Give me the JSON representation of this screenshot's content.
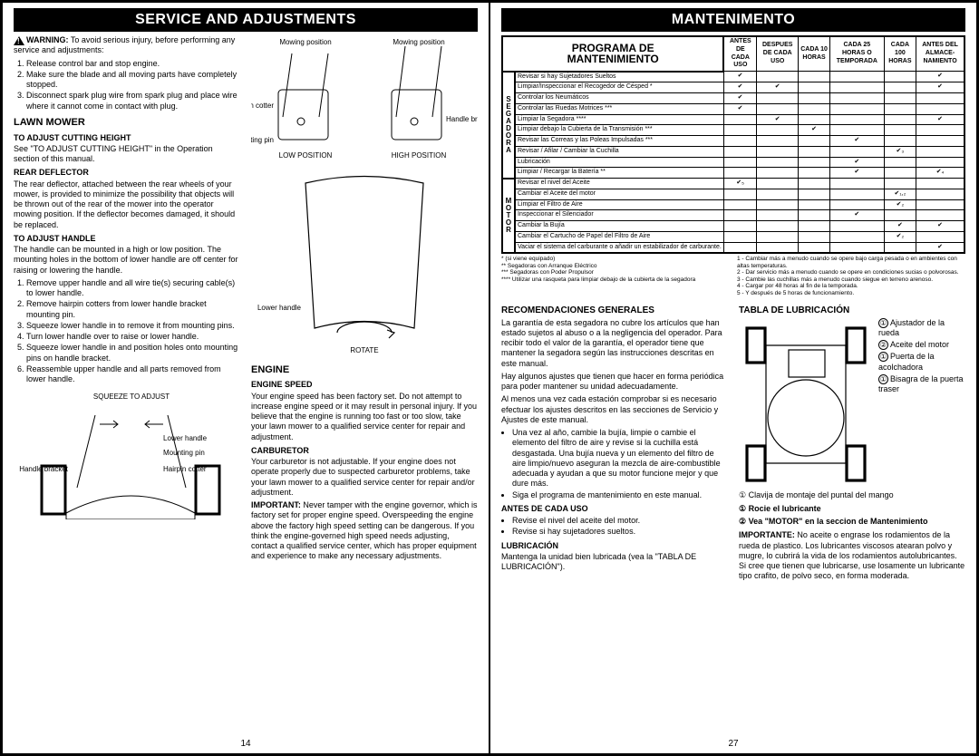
{
  "left": {
    "header": "SERVICE AND ADJUSTMENTS",
    "warning_label": "WARNING:",
    "warning_text": "To avoid serious injury, before performing any service and adjustments:",
    "warning_items": [
      "Release control bar and stop engine.",
      "Make sure the blade and all moving parts have completely stopped.",
      "Disconnect spark plug wire from spark plug and place wire where it cannot come in contact with plug."
    ],
    "lawn_mower_h": "LAWN MOWER",
    "cut_height_h": "TO ADJUST CUTTING HEIGHT",
    "cut_height_p": "See \"TO ADJUST CUTTING HEIGHT\" in the Operation section of this manual.",
    "rear_def_h": "REAR DEFLECTOR",
    "rear_def_p": "The rear deflector, attached between the rear wheels of your mower, is provided to minimize the possibility that objects will be thrown out of the rear of the mower into the operator mowing position.  If the deflector becomes damaged, it should be replaced.",
    "adj_handle_h": "TO ADJUST HANDLE",
    "adj_handle_p": "The handle can be mounted in a high or low position.  The mounting holes in the bottom of lower handle are off center for raising or lowering the handle.",
    "adj_handle_items": [
      "Remove upper handle and all wire tie(s) securing cable(s) to lower handle.",
      "Remove hairpin cotters from lower handle bracket mounting pin.",
      "Squeeze lower handle in to remove it from mounting pins.",
      "Turn lower handle over to raise or lower handle.",
      "Squeeze lower handle in and position holes onto mounting pins on handle bracket.",
      "Reassemble upper handle and all parts removed from lower handle."
    ],
    "fig1_labels": {
      "mowpos": "Mowing position",
      "hairpin": "Hairpin cotter",
      "mountpin": "Mounting pin",
      "handlebr": "Handle bracket",
      "low": "LOW POSITION",
      "high": "HIGH POSITION"
    },
    "fig2_labels": {
      "lower": "Lower handle",
      "rotate": "ROTATE"
    },
    "fig3_labels": {
      "squeeze": "SQUEEZE TO ADJUST",
      "lower": "Lower handle",
      "mountpin": "Mounting pin",
      "handlebr": "Handle bracket",
      "hairpin": "Hairpin cotter"
    },
    "engine_h": "ENGINE",
    "engine_speed_h": "ENGINE SPEED",
    "engine_speed_p": "Your engine speed has been factory set. Do not attempt to increase engine speed or it may result in personal injury. If you believe that the engine is running too fast or too slow, take your lawn mower to a qualified service center for repair and adjustment.",
    "carb_h": "CARBURETOR",
    "carb_p": "Your carburetor is not adjustable.  If your engine does not operate properly due to suspected carburetor problems, take your lawn mower to a qualified service center for repair and/or adjustment.",
    "important_label": "IMPORTANT:",
    "important_p": "Never tamper with the engine governor, which is factory set for proper engine speed.  Overspeeding the engine above the factory high speed setting can be dangerous.  If you think the engine-governed high speed needs adjusting, contact a qualified service center, which has proper equipment and experience to make any necessary adjustments.",
    "page_num": "14"
  },
  "right": {
    "header": "MANTENIMENTO",
    "table_title1": "PROGRAMA DE",
    "table_title2": "MANTENIMIENTO",
    "col_headers": [
      "ANTES DE CADA USO",
      "DESPUES DE CADA USO",
      "CADA 10 HORAS",
      "CADA 25 HORAS O TEMPORADA",
      "CADA 100 HORAS",
      "ANTES DEL ALMACE-NAMIENTO"
    ],
    "side_labels": [
      "S",
      "E",
      "G",
      "A",
      "D",
      "O",
      "R",
      "A",
      "",
      "M",
      "O",
      "T",
      "O",
      "R"
    ],
    "rows": [
      {
        "l": "Revisar si hay Sujetadores Sueltos",
        "c": [
          1,
          0,
          0,
          0,
          0,
          1
        ]
      },
      {
        "l": "Limpiar/Inspeccionar el Recogedor de Césped *",
        "c": [
          1,
          1,
          0,
          0,
          0,
          1
        ]
      },
      {
        "l": "Controlar los Neumáticos",
        "c": [
          1,
          0,
          0,
          0,
          0,
          0
        ]
      },
      {
        "l": "Controlar las Ruedas Motrices ***",
        "c": [
          1,
          0,
          0,
          0,
          0,
          0
        ]
      },
      {
        "l": "Limpiar la Segadora ****",
        "c": [
          0,
          1,
          0,
          0,
          0,
          1
        ]
      },
      {
        "l": "Limpiar debajo la Cubierta de la Transmisión ***",
        "c": [
          0,
          0,
          1,
          0,
          0,
          0
        ]
      },
      {
        "l": "Revisar las Correas y las Poleas Impulsadas ***",
        "c": [
          0,
          0,
          0,
          1,
          0,
          0
        ]
      },
      {
        "l": "Revisar / Afilar / Cambiar la Cuchilla",
        "c": [
          0,
          0,
          0,
          0,
          "✔₃",
          0
        ]
      },
      {
        "l": "Lubricación",
        "c": [
          0,
          0,
          0,
          1,
          0,
          0
        ]
      },
      {
        "l": "Limpiar / Recargar la Batería **",
        "c": [
          0,
          0,
          0,
          1,
          0,
          "✔₄"
        ]
      },
      {
        "l": "Revisar el nivel del Aceite",
        "c": [
          "✔₅",
          0,
          0,
          0,
          0,
          0
        ]
      },
      {
        "l": "Cambiar el Aceite del motor",
        "c": [
          0,
          0,
          0,
          0,
          "✔₁,₂",
          0
        ]
      },
      {
        "l": "Limpiar el Filtro de Aire",
        "c": [
          0,
          0,
          0,
          0,
          "✔₂",
          0
        ]
      },
      {
        "l": "Inspeccionar el Silenciador",
        "c": [
          0,
          0,
          0,
          1,
          0,
          0
        ]
      },
      {
        "l": "Cambiar la Bujía",
        "c": [
          0,
          0,
          0,
          0,
          1,
          1
        ]
      },
      {
        "l": "Cambiar el Cartucho de Papel del Filtro de Aire",
        "c": [
          0,
          0,
          0,
          0,
          "✔₂",
          0
        ]
      },
      {
        "l": "Vaciar el sistema del carburante o añadir un estabilizador de carburante.",
        "c": [
          0,
          0,
          0,
          0,
          0,
          1
        ]
      }
    ],
    "footnotes_left": [
      "* (si viene equipado)",
      "** Segadoras con Arranque Eléctrico",
      "*** Segadoras con Poder Propulsor",
      "**** Utilizar una rasqueta para limpiar debajo de la cubierta de la segadora"
    ],
    "footnotes_right": [
      "1 - Cambiar más a menudo cuando se opere bajo carga pesada o en ambientes con altas temperaturas.",
      "2 - Dar servicio más a menudo cuando se opere en condiciones sucias o polvorosas.",
      "3 - Cambie las cuchillas más a menudo cuando siegue en terreno arenoso.",
      "4 - Cargar por 48 horas al fin de la temporada.",
      "5 - Y después de 5 horas de funcionamiento."
    ],
    "recom_h": "RECOMENDACIONES GENERALES",
    "recom_p1": "La garantía de esta segadora no cubre los artículos que han estado sujetos al abuso o a la negligencia del operador. Para recibir todo el valor de la garantía, el operador tiene que mantener la segadora según las instrucciones descritas en este manual.",
    "recom_p2": "Hay algunos ajustes que tienen que hacer en forma periódica para poder mantener su unidad adecuadamente.",
    "recom_p3": "Al menos una vez cada estación comprobar si es necesario efectuar los ajustes descritos en las secciones de Servicio y Ajustes de este manual.",
    "recom_bullets": [
      "Una vez al año, cambie la bujía, limpie o cambie el elemento del filtro de aire y revise si la cuchilla está desgastada. Una bujía nueva y un elemento del filtro de aire limpio/nuevo aseguran la mezcla de aire-combustible adecuada y ayudan a que su motor funcione mejor y que dure más.",
      "Siga el programa de mantenimiento en este manual."
    ],
    "antes_h": "ANTES DE CADA USO",
    "antes_bullets": [
      "Revise el nivel del aceite del motor.",
      "Revise si hay sujetadores sueltos."
    ],
    "lubr_h": "LUBRICACIÓN",
    "lubr_p": "Mantenga la unidad bien lubricada (vea la \"TABLA DE LUBRICACIÓN\").",
    "tabla_lub_h": "TABLA DE LUBRICACIÓN",
    "lube_items": [
      {
        "n": "①",
        "t": "Ajustador de la rueda"
      },
      {
        "n": "②",
        "t": "Aceite del motor"
      },
      {
        "n": "①",
        "t": "Puerta de la acolchadora"
      },
      {
        "n": "①",
        "t": "Bisagra de la puerta traser"
      }
    ],
    "lube_bottom": "① Clavija de montaje del puntal del mango",
    "lube_legend1": "① Rocie el lubricante",
    "lube_legend2": "② Vea \"MOTOR\" en la seccion de Mantenimiento",
    "importante_label": "IMPORTANTE:",
    "importante_p": "No aceite o engrase los rodamientos de la rueda de plastico. Los lubricantes viscosos atearan polvo y mugre, lo cubrirá la vida de los rodamientos autolubricantes. Si cree que tienen que lubricarse, use losamente un lubricante tipo crafito, de polvo seco, en forma moderada.",
    "page_num": "27"
  }
}
